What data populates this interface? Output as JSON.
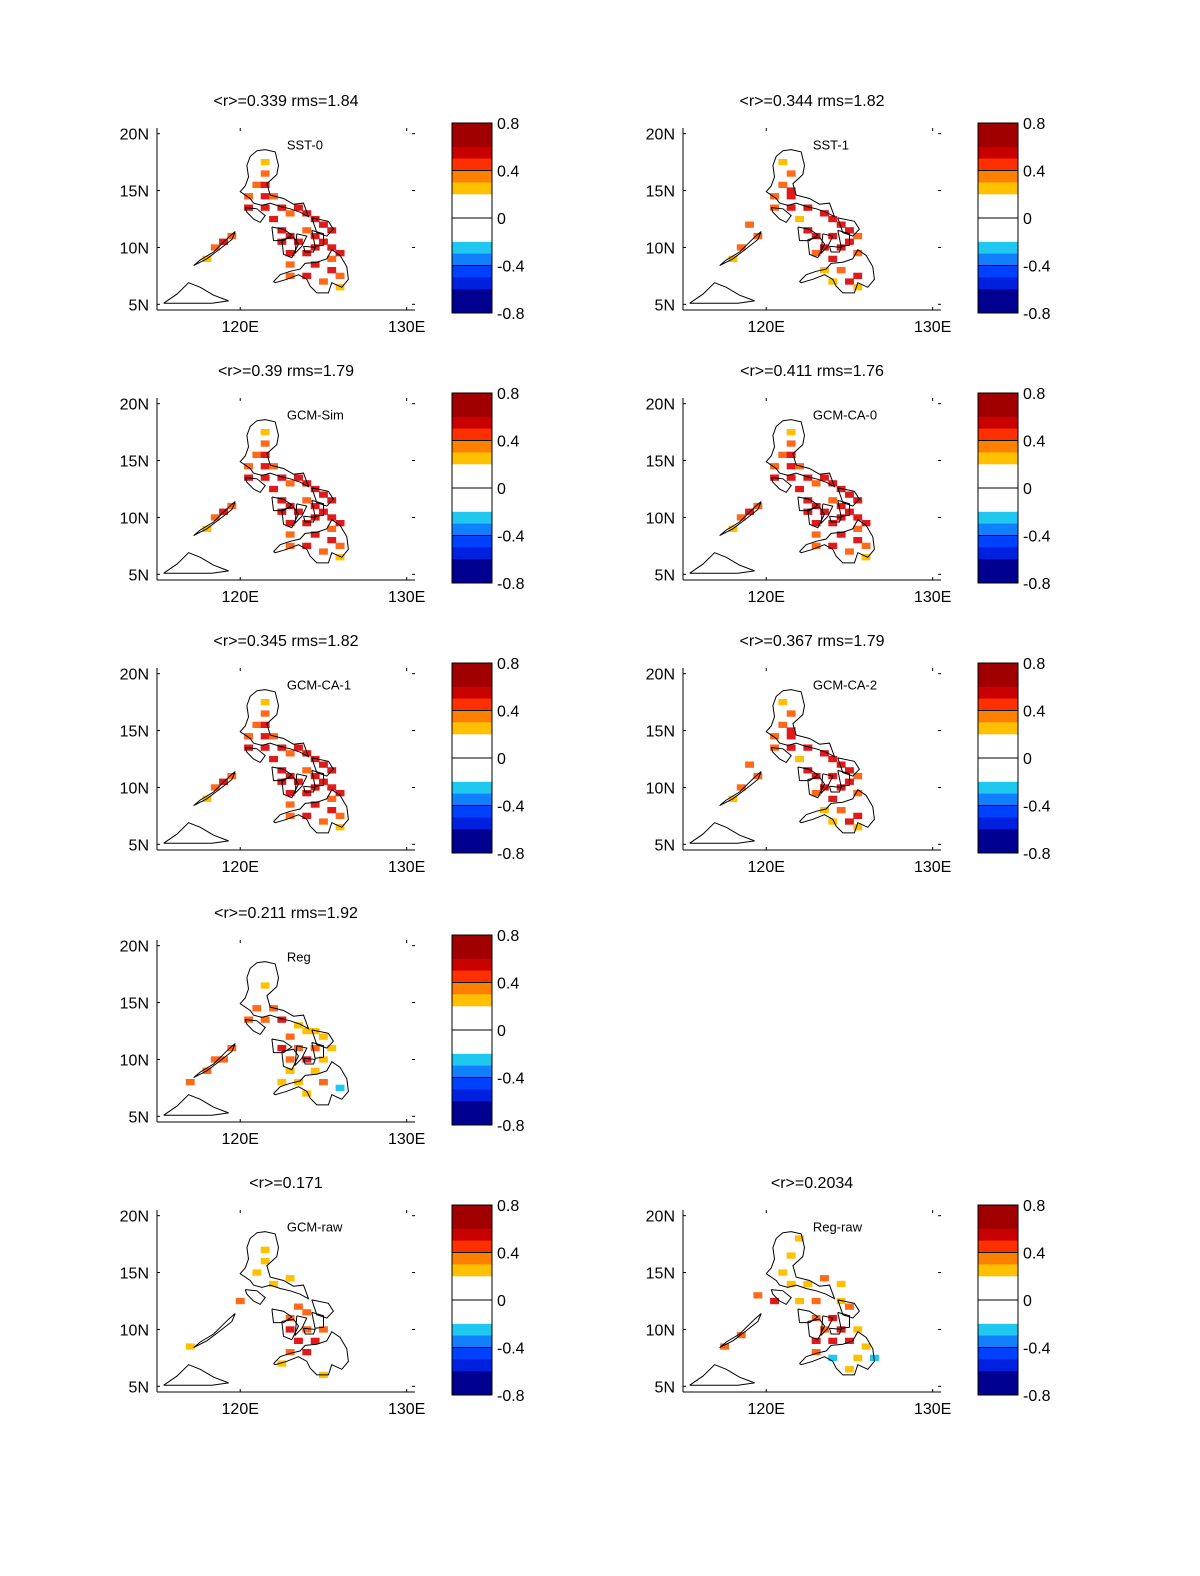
{
  "figure": {
    "panels": [
      {
        "id": "sst-0",
        "title": "<r>=0.339 rms=1.84",
        "label": "SST-0",
        "pattern": "A",
        "col": 0,
        "row": 0
      },
      {
        "id": "sst-1",
        "title": "<r>=0.344 rms=1.82",
        "label": "SST-1",
        "pattern": "B",
        "col": 1,
        "row": 0
      },
      {
        "id": "gcm-sim",
        "title": "<r>=0.39 rms=1.79",
        "label": "GCM-Sim",
        "pattern": "A",
        "col": 0,
        "row": 1
      },
      {
        "id": "gcm-ca-0",
        "title": "<r>=0.411 rms=1.76",
        "label": "GCM-CA-0",
        "pattern": "A",
        "col": 1,
        "row": 1
      },
      {
        "id": "gcm-ca-1",
        "title": "<r>=0.345 rms=1.82",
        "label": "GCM-CA-1",
        "pattern": "A",
        "col": 0,
        "row": 2
      },
      {
        "id": "gcm-ca-2",
        "title": "<r>=0.367 rms=1.79",
        "label": "GCM-CA-2",
        "pattern": "B",
        "col": 1,
        "row": 2
      },
      {
        "id": "reg",
        "title": "<r>=0.211 rms=1.92",
        "label": "Reg",
        "pattern": "C",
        "col": 0,
        "row": 3
      },
      {
        "id": "gcm-raw",
        "title": "<r>=0.171",
        "label": "GCM-raw",
        "pattern": "D",
        "col": 0,
        "row": 4
      },
      {
        "id": "reg-raw",
        "title": "<r>=0.2034",
        "label": "Reg-raw",
        "pattern": "E",
        "col": 1,
        "row": 4
      }
    ],
    "axes": {
      "lon_min": 115,
      "lon_max": 130.5,
      "lat_min": 4.5,
      "lat_max": 20.5,
      "x_ticks": [
        {
          "value": 120,
          "label": "120E"
        },
        {
          "value": 130,
          "label": "130E"
        }
      ],
      "y_ticks": [
        {
          "value": 5,
          "label": "5N"
        },
        {
          "value": 10,
          "label": "10N"
        },
        {
          "value": 15,
          "label": "15N"
        },
        {
          "value": 20,
          "label": "20N"
        }
      ]
    },
    "colorbar": {
      "min": -0.8,
      "max": 0.8,
      "ticks": [
        {
          "value": 0.8,
          "label": "0.8"
        },
        {
          "value": 0.4,
          "label": "0.4"
        },
        {
          "value": 0,
          "label": "0"
        },
        {
          "value": -0.4,
          "label": "-0.4"
        },
        {
          "value": -0.8,
          "label": "-0.8"
        }
      ]
    },
    "colors": {
      "white": "#ffffff",
      "yellow": "#ffc000",
      "orange": "#ff6a1a",
      "red": "#e01a1a",
      "cyan": "#20c8f0",
      "coast": "#000000"
    }
  }
}
